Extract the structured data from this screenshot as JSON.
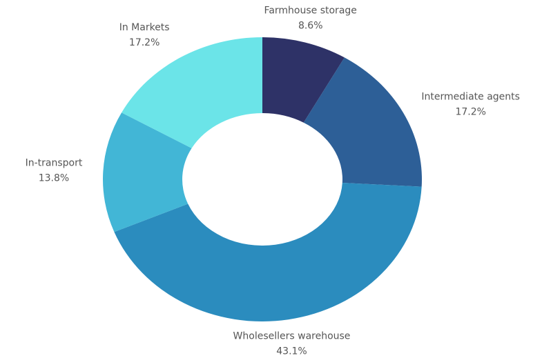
{
  "chart_data": {
    "type": "donut",
    "categories": [
      "Farmhouse storage",
      "Intermediate agents",
      "Wholesellers warehouse",
      "In-transport",
      "In Markets"
    ],
    "values": [
      8.6,
      17.2,
      43.1,
      13.8,
      17.2
    ],
    "value_labels": [
      "8.6%",
      "17.2%",
      "43.1%",
      "13.8%",
      "17.2%"
    ],
    "colors": [
      "#2e3267",
      "#2d5f97",
      "#2b8cbe",
      "#42b6d6",
      "#6be4e8"
    ]
  }
}
